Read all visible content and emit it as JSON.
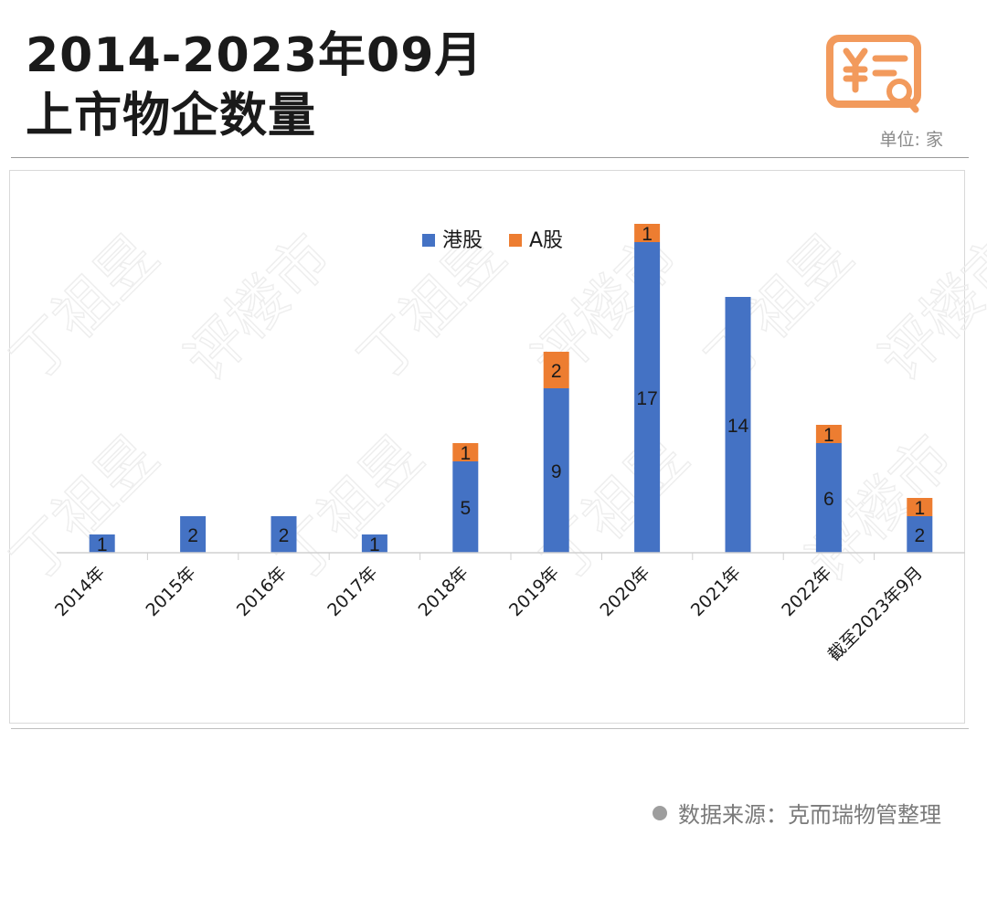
{
  "header": {
    "title_line1": "2014-2023年09月",
    "title_line2": "上市物企数量",
    "unit": "单位: 家"
  },
  "icons": {
    "logo": "receipt-search-icon"
  },
  "colors": {
    "hk": "#4472C4",
    "a": "#ED7D31",
    "accent": "#F29A5C"
  },
  "footer": {
    "source": "数据来源：克而瑞物管整理"
  },
  "chart_data": {
    "type": "bar",
    "stacked": true,
    "categories": [
      "2014年",
      "2015年",
      "2016年",
      "2017年",
      "2018年",
      "2019年",
      "2020年",
      "2021年",
      "2022年",
      "截至2023年9月"
    ],
    "series": [
      {
        "name": "港股",
        "color": "#4472C4",
        "values": [
          1,
          2,
          2,
          1,
          5,
          9,
          17,
          14,
          6,
          2
        ]
      },
      {
        "name": "A股",
        "color": "#ED7D31",
        "values": [
          0,
          0,
          0,
          0,
          1,
          2,
          1,
          0,
          1,
          1
        ]
      }
    ],
    "data_labels": {
      "港股": [
        "1",
        "2",
        "2",
        "1",
        "5",
        "9",
        "17",
        "14",
        "6",
        "2"
      ],
      "A股": [
        "",
        "",
        "",
        "",
        "1",
        "2",
        "1",
        "",
        "1",
        "1"
      ]
    },
    "ylim": [
      0,
      18
    ],
    "legend": "top-center",
    "grid": false
  }
}
